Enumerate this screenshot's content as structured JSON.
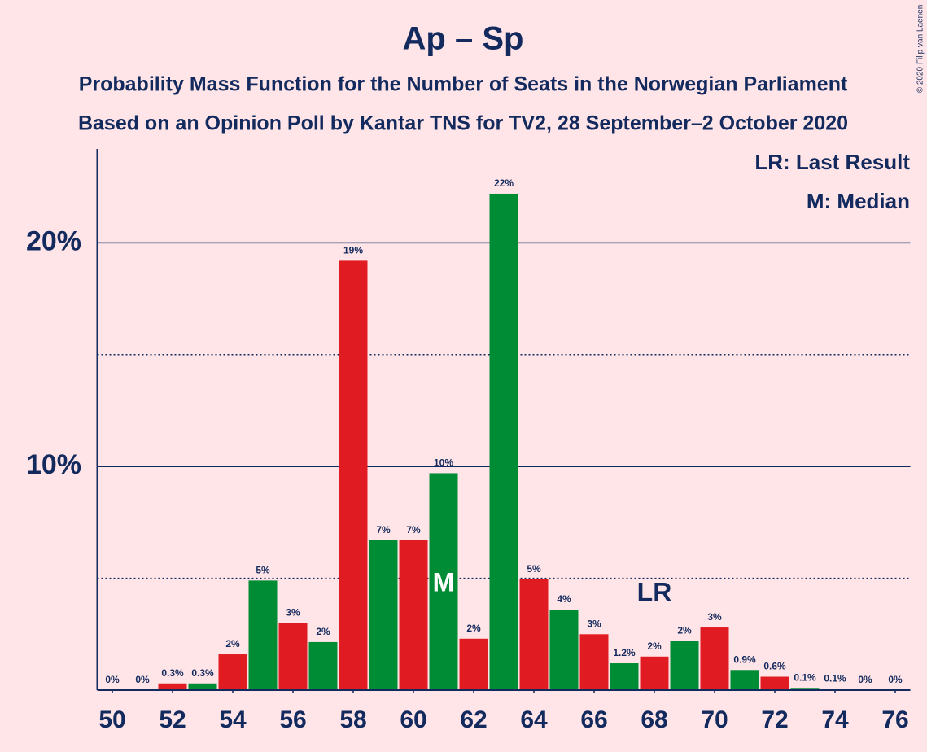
{
  "chart_data": {
    "type": "bar",
    "title": "Ap – Sp",
    "subtitle": [
      "Probability Mass Function for the Number of Seats in the Norwegian Parliament",
      "Based on an Opinion Poll by Kantar TNS for TV2, 28 September–2 October 2020"
    ],
    "x": [
      50,
      51,
      52,
      53,
      54,
      55,
      56,
      57,
      58,
      59,
      60,
      61,
      62,
      63,
      64,
      65,
      66,
      67,
      68,
      69,
      70,
      71,
      72,
      73,
      74,
      75,
      76
    ],
    "values": [
      0,
      0,
      0.3,
      0.3,
      1.6,
      4.9,
      3.0,
      2.15,
      19.2,
      6.7,
      6.7,
      9.7,
      2.3,
      22.2,
      4.95,
      3.6,
      2.5,
      1.2,
      1.5,
      2.2,
      2.8,
      0.9,
      0.6,
      0.1,
      0.06,
      0,
      0
    ],
    "value_labels": [
      "0%",
      "0%",
      "0.3%",
      "0.3%",
      "2%",
      "5%",
      "3%",
      "2%",
      "19%",
      "7%",
      "7%",
      "10%",
      "2%",
      "22%",
      "5%",
      "4%",
      "3%",
      "1.2%",
      "2%",
      "2%",
      "3%",
      "0.9%",
      "0.6%",
      "0.1%",
      "0.1%",
      "0%",
      "0%"
    ],
    "colors": [
      "#e01b22",
      "#008c35"
    ],
    "xlim": [
      49.5,
      76.5
    ],
    "xticks": [
      50,
      52,
      54,
      56,
      58,
      60,
      62,
      64,
      66,
      68,
      70,
      72,
      74,
      76
    ],
    "ylim": [
      0,
      24.2
    ],
    "yticks": [
      {
        "value": 10,
        "label": "10%"
      },
      {
        "value": 20,
        "label": "20%"
      }
    ],
    "minor_yticks": [
      5,
      15
    ],
    "grid": true,
    "median": {
      "x": 61,
      "label": "M"
    },
    "last_result": {
      "x": 68,
      "label": "LR"
    },
    "legend": [
      "LR: Last Result",
      "M: Median"
    ],
    "copyright": "© 2020 Filip van Laenen"
  }
}
